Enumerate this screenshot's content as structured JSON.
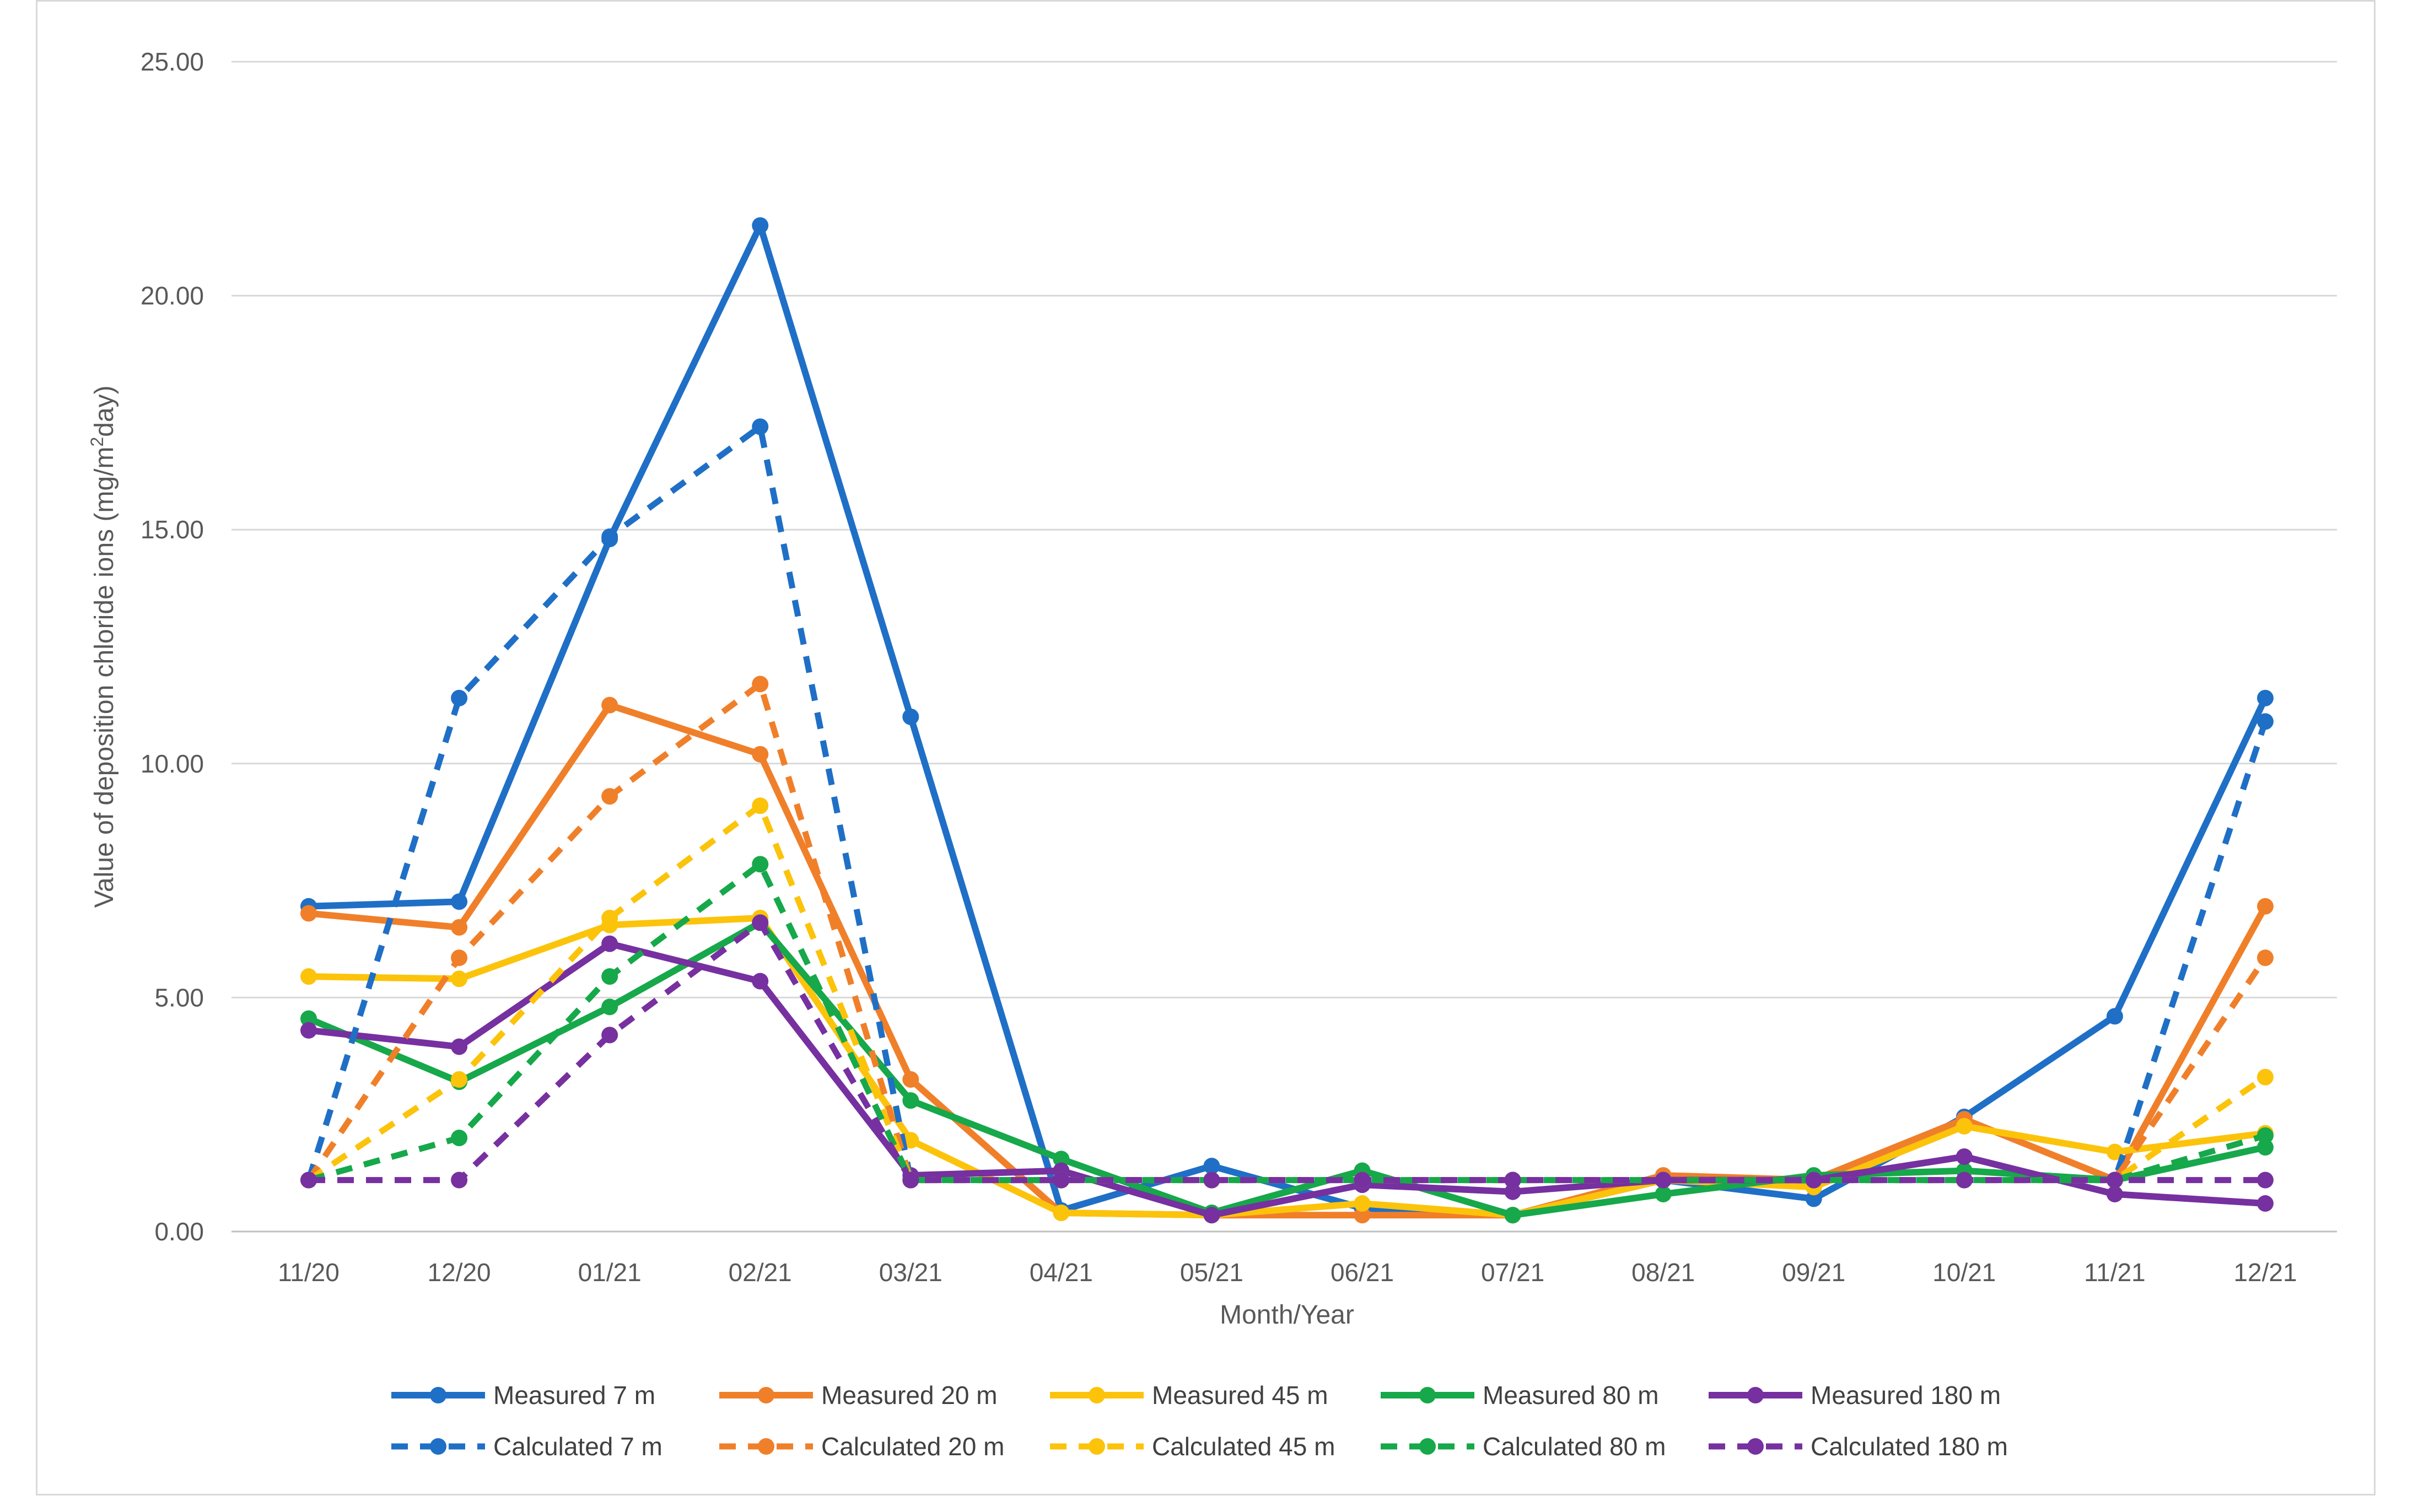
{
  "chart_data": {
    "type": "line",
    "title": "",
    "xlabel": "Month/Year",
    "ylabel_parts": [
      "Value of deposition chloride ions (mg/m",
      "2",
      "day)"
    ],
    "ylim": [
      0,
      25
    ],
    "yticks": [
      "0.00",
      "5.00",
      "10.00",
      "15.00",
      "20.00",
      "25.00"
    ],
    "categories": [
      "11/20",
      "12/20",
      "01/21",
      "02/21",
      "03/21",
      "04/21",
      "05/21",
      "06/21",
      "07/21",
      "08/21",
      "09/21",
      "10/21",
      "11/21",
      "12/21"
    ],
    "legend_position": "bottom",
    "grid": true,
    "series": [
      {
        "name": "Measured 7 m",
        "color": "#1f6fc6",
        "dashed": false,
        "values": [
          6.95,
          7.05,
          14.8,
          21.5,
          11.0,
          0.45,
          1.4,
          0.5,
          0.35,
          1.1,
          0.7,
          2.45,
          4.6,
          11.4
        ]
      },
      {
        "name": "Measured 20 m",
        "color": "#f07f2a",
        "dashed": false,
        "values": [
          6.8,
          6.5,
          11.25,
          10.2,
          3.25,
          0.4,
          0.35,
          0.35,
          0.35,
          1.2,
          1.1,
          2.4,
          1.1,
          6.95
        ]
      },
      {
        "name": "Measured 45 m",
        "color": "#fcc30b",
        "dashed": false,
        "values": [
          5.45,
          5.4,
          6.55,
          6.7,
          1.95,
          0.4,
          0.35,
          0.6,
          0.35,
          1.1,
          0.95,
          2.25,
          1.7,
          2.1
        ]
      },
      {
        "name": "Measured 80 m",
        "color": "#16a84a",
        "dashed": false,
        "values": [
          4.55,
          3.2,
          4.8,
          6.6,
          2.8,
          1.55,
          0.4,
          1.3,
          0.35,
          0.8,
          1.2,
          1.3,
          1.1,
          1.8
        ]
      },
      {
        "name": "Measured 180 m",
        "color": "#7630a0",
        "dashed": false,
        "values": [
          4.3,
          3.95,
          6.15,
          5.35,
          1.2,
          1.3,
          0.35,
          1.0,
          0.85,
          1.1,
          1.1,
          1.6,
          0.8,
          0.6
        ]
      },
      {
        "name": "Calculated 7 m",
        "color": "#1f6fc6",
        "dashed": true,
        "values": [
          1.1,
          11.4,
          14.85,
          17.2,
          1.1,
          1.1,
          1.1,
          1.1,
          1.1,
          1.1,
          1.1,
          1.1,
          1.1,
          10.9
        ]
      },
      {
        "name": "Calculated 20 m",
        "color": "#f07f2a",
        "dashed": true,
        "values": [
          1.1,
          5.85,
          9.3,
          11.7,
          1.1,
          1.1,
          1.1,
          1.1,
          1.1,
          1.1,
          1.1,
          1.1,
          1.1,
          5.85
        ]
      },
      {
        "name": "Calculated 45 m",
        "color": "#fcc30b",
        "dashed": true,
        "values": [
          1.1,
          3.25,
          6.7,
          9.1,
          1.1,
          1.1,
          1.1,
          1.1,
          1.1,
          1.1,
          1.1,
          1.1,
          1.1,
          3.3
        ]
      },
      {
        "name": "Calculated 80 m",
        "color": "#16a84a",
        "dashed": true,
        "values": [
          1.1,
          2.0,
          5.45,
          7.85,
          1.1,
          1.1,
          1.1,
          1.1,
          1.1,
          1.1,
          1.1,
          1.1,
          1.1,
          2.05
        ]
      },
      {
        "name": "Calculated 180 m",
        "color": "#7630a0",
        "dashed": true,
        "values": [
          1.1,
          1.1,
          4.2,
          6.6,
          1.1,
          1.1,
          1.1,
          1.1,
          1.1,
          1.1,
          1.1,
          1.1,
          1.1,
          1.1
        ]
      }
    ]
  }
}
